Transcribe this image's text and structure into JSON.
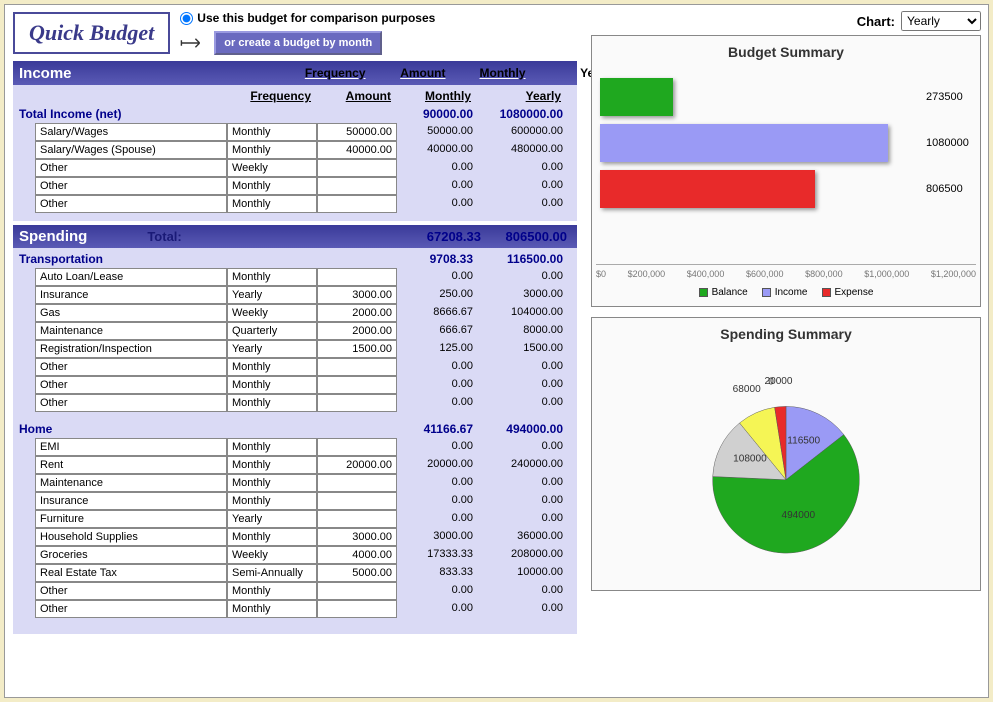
{
  "header": {
    "title": "Quick Budget",
    "radio_label": "Use this budget for comparison purposes",
    "month_btn": "or create a budget by month",
    "chart_label": "Chart:",
    "chart_select_value": "Yearly"
  },
  "columns": [
    "Frequency",
    "Amount",
    "Monthly",
    "Yearly"
  ],
  "income": {
    "label": "Income",
    "total_label": "Total Income (net)",
    "total_monthly": "90000.00",
    "total_yearly": "1080000.00",
    "rows": [
      {
        "name": "Salary/Wages",
        "freq": "Monthly",
        "amt": "50000.00",
        "m": "50000.00",
        "y": "600000.00"
      },
      {
        "name": "Salary/Wages (Spouse)",
        "freq": "Monthly",
        "amt": "40000.00",
        "m": "40000.00",
        "y": "480000.00"
      },
      {
        "name": "Other",
        "freq": "Weekly",
        "amt": "",
        "m": "0.00",
        "y": "0.00"
      },
      {
        "name": "Other",
        "freq": "Monthly",
        "amt": "",
        "m": "0.00",
        "y": "0.00"
      },
      {
        "name": "Other",
        "freq": "Monthly",
        "amt": "",
        "m": "0.00",
        "y": "0.00"
      }
    ]
  },
  "spending": {
    "label": "Spending",
    "total_word": "Total:",
    "total_monthly": "67208.33",
    "total_yearly": "806500.00",
    "categories": [
      {
        "name": "Transportation",
        "m": "9708.33",
        "y": "116500.00",
        "rows": [
          {
            "name": "Auto Loan/Lease",
            "freq": "Monthly",
            "amt": "",
            "m": "0.00",
            "y": "0.00"
          },
          {
            "name": "Insurance",
            "freq": "Yearly",
            "amt": "3000.00",
            "m": "250.00",
            "y": "3000.00"
          },
          {
            "name": "Gas",
            "freq": "Weekly",
            "amt": "2000.00",
            "m": "8666.67",
            "y": "104000.00"
          },
          {
            "name": "Maintenance",
            "freq": "Quarterly",
            "amt": "2000.00",
            "m": "666.67",
            "y": "8000.00"
          },
          {
            "name": "Registration/Inspection",
            "freq": "Yearly",
            "amt": "1500.00",
            "m": "125.00",
            "y": "1500.00"
          },
          {
            "name": "Other",
            "freq": "Monthly",
            "amt": "",
            "m": "0.00",
            "y": "0.00"
          },
          {
            "name": "Other",
            "freq": "Monthly",
            "amt": "",
            "m": "0.00",
            "y": "0.00"
          },
          {
            "name": "Other",
            "freq": "Monthly",
            "amt": "",
            "m": "0.00",
            "y": "0.00"
          }
        ]
      },
      {
        "name": "Home",
        "m": "41166.67",
        "y": "494000.00",
        "rows": [
          {
            "name": "EMI",
            "freq": "Monthly",
            "amt": "",
            "m": "0.00",
            "y": "0.00"
          },
          {
            "name": "Rent",
            "freq": "Monthly",
            "amt": "20000.00",
            "m": "20000.00",
            "y": "240000.00"
          },
          {
            "name": "Maintenance",
            "freq": "Monthly",
            "amt": "",
            "m": "0.00",
            "y": "0.00"
          },
          {
            "name": "Insurance",
            "freq": "Monthly",
            "amt": "",
            "m": "0.00",
            "y": "0.00"
          },
          {
            "name": "Furniture",
            "freq": "Yearly",
            "amt": "",
            "m": "0.00",
            "y": "0.00"
          },
          {
            "name": "Household Supplies",
            "freq": "Monthly",
            "amt": "3000.00",
            "m": "3000.00",
            "y": "36000.00"
          },
          {
            "name": "Groceries",
            "freq": "Weekly",
            "amt": "4000.00",
            "m": "17333.33",
            "y": "208000.00"
          },
          {
            "name": "Real Estate Tax",
            "freq": "Semi-Annually",
            "amt": "5000.00",
            "m": "833.33",
            "y": "10000.00"
          },
          {
            "name": "Other",
            "freq": "Monthly",
            "amt": "",
            "m": "0.00",
            "y": "0.00"
          },
          {
            "name": "Other",
            "freq": "Monthly",
            "amt": "",
            "m": "0.00",
            "y": "0.00"
          }
        ]
      }
    ]
  },
  "budget_chart": {
    "title": "Budget Summary",
    "type": "bar-horizontal",
    "max": 1200000,
    "bars": [
      {
        "label": "273500",
        "value": 273500,
        "color": "#1fa81f",
        "name": "Balance"
      },
      {
        "label": "1080000",
        "value": 1080000,
        "color": "#9a9af5",
        "name": "Income"
      },
      {
        "label": "806500",
        "value": 806500,
        "color": "#e82a2a",
        "name": "Expense"
      }
    ],
    "axis_ticks": [
      "$0",
      "$200,000",
      "$400,000",
      "$600,000",
      "$800,000",
      "$1,000,000",
      "$1,200,000"
    ],
    "legend": [
      {
        "label": "Balance",
        "color": "#1fa81f"
      },
      {
        "label": "Income",
        "color": "#9a9af5"
      },
      {
        "label": "Expense",
        "color": "#e82a2a"
      }
    ]
  },
  "spending_chart": {
    "title": "Spending Summary",
    "type": "pie",
    "total": 806500,
    "slices": [
      {
        "label": "116500",
        "value": 116500,
        "color": "#9a9af5"
      },
      {
        "label": "494000",
        "value": 494000,
        "color": "#1fa81f"
      },
      {
        "label": "108000",
        "value": 108000,
        "color": "#d0d0d0"
      },
      {
        "label": "68000",
        "value": 68000,
        "color": "#f5f555"
      },
      {
        "label": "0",
        "value": 0,
        "color": "#888888"
      },
      {
        "label": "20000",
        "value": 20000,
        "color": "#e82a2a"
      }
    ]
  },
  "colors": {
    "panel_bg": "#dadaf5",
    "hdr_grad_top": "#3a3a99",
    "hdr_grad_bot": "#5a5ab5",
    "cat_text": "#00008b"
  }
}
